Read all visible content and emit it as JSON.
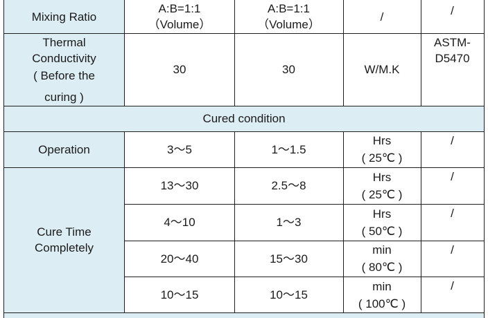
{
  "rows": {
    "mixing": {
      "label": "Mixing Ratio",
      "a": [
        "A:B=1:1",
        "（Volume）"
      ],
      "b": [
        "A:B=1:1",
        "（Volume）"
      ],
      "unit": "/",
      "std": "/"
    },
    "thermal": {
      "label": [
        "Thermal",
        "Conductivity",
        "( Before the",
        "curing )"
      ],
      "a": "30",
      "b": "30",
      "unit": "W/M.K",
      "std": [
        "ASTM-",
        "D5470"
      ]
    },
    "cured_header": "Cured condition",
    "operation": {
      "label": "Operation",
      "a": "3～5",
      "b": "1～1.5",
      "unit": [
        "Hrs",
        "( 25℃ )"
      ],
      "std": "/"
    },
    "cure_time": {
      "label": [
        "Cure Time",
        "Completely"
      ],
      "items": [
        {
          "a": "13～30",
          "b": "2.5～8",
          "unit": [
            "Hrs",
            "( 25℃ )"
          ],
          "std": "/"
        },
        {
          "a": "4～10",
          "b": "1～3",
          "unit": [
            "Hrs",
            "( 50℃ )"
          ],
          "std": "/"
        },
        {
          "a": "20～40",
          "b": "15～30",
          "unit": [
            "min",
            "( 80℃ )"
          ],
          "std": "/"
        },
        {
          "a": "10～15",
          "b": "10～15",
          "unit": [
            "min",
            "( 100℃ )"
          ],
          "std": "/"
        }
      ]
    }
  },
  "colors": {
    "label_bg": "#dcedf4",
    "grid": "#1e1e1e",
    "text": "#1a1a1a"
  }
}
